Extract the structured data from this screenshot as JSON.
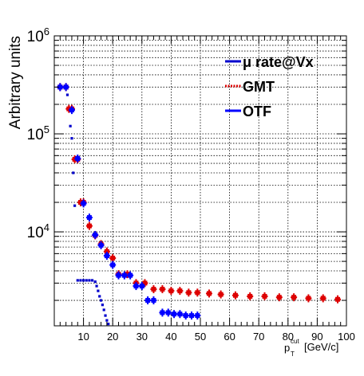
{
  "chart_data": {
    "type": "scatter",
    "title": "",
    "xlabel": "p_T^cut [GeV/c]",
    "xlabel_main": "p",
    "xlabel_sub": "T",
    "xlabel_sup": "cut",
    "xlabel_unit": "[GeV/c]",
    "ylabel": "Arbitrary units",
    "xlim": [
      0,
      100
    ],
    "ylim": [
      1100,
      1000000
    ],
    "yscale": "log",
    "grid": true,
    "legend_position": "top-right",
    "x_ticks": [
      10,
      20,
      30,
      40,
      50,
      60,
      70,
      80,
      90,
      100
    ],
    "x_tick_labels": [
      "10",
      "20",
      "30",
      "40",
      "50",
      "60",
      "70",
      "80",
      "90",
      "100"
    ],
    "y_ticks": [
      10000,
      100000,
      1000000
    ],
    "y_tick_labels": [
      {
        "base": "10",
        "exp": "4"
      },
      {
        "base": "10",
        "exp": "5"
      },
      {
        "base": "10",
        "exp": "6"
      }
    ],
    "series": [
      {
        "name": "μ rate@Vx",
        "color": "#0000cc",
        "style": "markers",
        "points": [
          [
            1.5,
            300000
          ],
          [
            2.5,
            300000
          ],
          [
            3.5,
            300000
          ],
          [
            4.5,
            250000
          ],
          [
            5,
            180000
          ],
          [
            5.5,
            120000
          ],
          [
            6,
            90000
          ],
          [
            6.5,
            40000
          ],
          [
            7,
            18500
          ],
          [
            8,
            3200
          ],
          [
            9,
            3200
          ],
          [
            10,
            3200
          ],
          [
            11,
            3200
          ],
          [
            12,
            3200
          ],
          [
            13,
            3200
          ],
          [
            14,
            3100
          ],
          [
            14.5,
            2800
          ],
          [
            15,
            2500
          ],
          [
            15.5,
            2200
          ],
          [
            16,
            2000
          ],
          [
            16.5,
            1800
          ],
          [
            17,
            1600
          ],
          [
            17.5,
            1400
          ],
          [
            18,
            1250
          ],
          [
            18.5,
            1150
          ]
        ]
      },
      {
        "name": "GMT",
        "color": "#dd0000",
        "style": "errorbars",
        "points": [
          [
            2,
            300000
          ],
          [
            4,
            300000
          ],
          [
            5,
            180000
          ],
          [
            6,
            180000
          ],
          [
            7,
            55000
          ],
          [
            8,
            55000
          ],
          [
            9,
            20000
          ],
          [
            10,
            20000
          ],
          [
            12,
            11500
          ],
          [
            14,
            9200
          ],
          [
            16,
            7500
          ],
          [
            18,
            6300
          ],
          [
            20,
            5400
          ],
          [
            22,
            3700
          ],
          [
            25,
            3700
          ],
          [
            28,
            3000
          ],
          [
            31,
            3000
          ],
          [
            34,
            2600
          ],
          [
            37,
            2600
          ],
          [
            40,
            2500
          ],
          [
            43,
            2500
          ],
          [
            46,
            2400
          ],
          [
            49,
            2400
          ],
          [
            53,
            2350
          ],
          [
            57,
            2300
          ],
          [
            62,
            2250
          ],
          [
            67,
            2200
          ],
          [
            72,
            2200
          ],
          [
            77,
            2150
          ],
          [
            82,
            2150
          ],
          [
            87,
            2100
          ],
          [
            92,
            2100
          ],
          [
            97,
            2050
          ]
        ]
      },
      {
        "name": "OTF",
        "color": "#0000ff",
        "style": "errorbars",
        "points": [
          [
            2,
            300000
          ],
          [
            4,
            300000
          ],
          [
            6,
            175000
          ],
          [
            8,
            56000
          ],
          [
            10,
            19500
          ],
          [
            12,
            14000
          ],
          [
            14,
            9300
          ],
          [
            16,
            7300
          ],
          [
            18,
            5700
          ],
          [
            20,
            4600
          ],
          [
            22,
            3600
          ],
          [
            24,
            3600
          ],
          [
            26,
            3600
          ],
          [
            28,
            2800
          ],
          [
            30,
            2800
          ],
          [
            32,
            2000
          ],
          [
            34,
            2000
          ],
          [
            37,
            1500
          ],
          [
            39,
            1500
          ],
          [
            41,
            1450
          ],
          [
            43,
            1450
          ],
          [
            45,
            1400
          ],
          [
            47,
            1400
          ],
          [
            49,
            1400
          ]
        ]
      }
    ]
  }
}
